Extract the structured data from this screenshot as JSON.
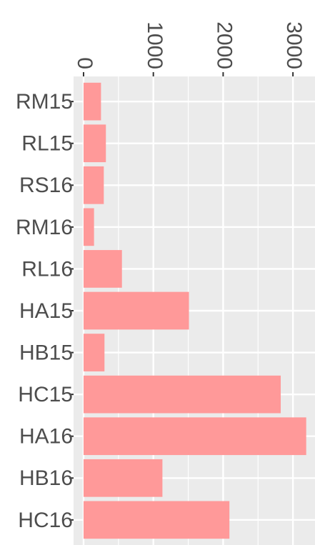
{
  "chart_data": {
    "type": "bar",
    "orientation": "horizontal",
    "categories": [
      "RM15",
      "RL15",
      "RS16",
      "RM16",
      "RL16",
      "HA15",
      "HB15",
      "HC15",
      "HA16",
      "HB16",
      "HC16"
    ],
    "values": [
      250,
      320,
      290,
      150,
      550,
      1510,
      300,
      2825,
      3190,
      1130,
      2090
    ],
    "color": "#ff9999",
    "xlim": [
      -143,
      3316
    ],
    "xticks": [
      0,
      1000,
      2000,
      3000
    ],
    "minor_xticks": [
      500,
      1500,
      2500
    ],
    "grid": true
  }
}
